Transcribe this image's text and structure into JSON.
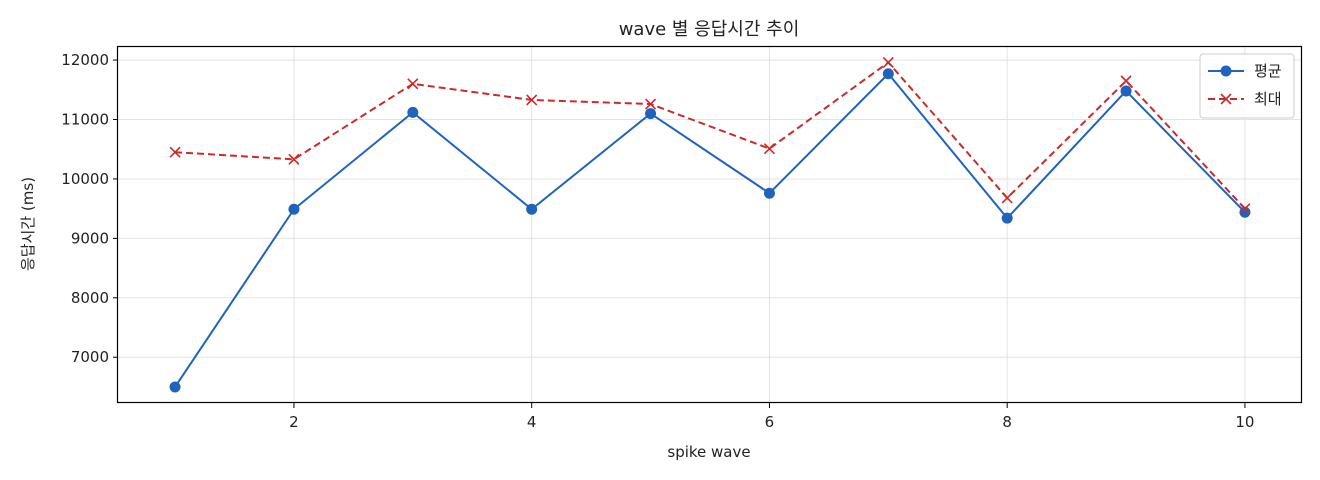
{
  "chart_data": {
    "type": "line",
    "title": "wave 별 응답시간 추이",
    "xlabel": "spike wave",
    "ylabel": "응답시간 (ms)",
    "x": [
      1,
      2,
      3,
      4,
      5,
      6,
      7,
      8,
      9,
      10
    ],
    "xlim": [
      0.52,
      10.48
    ],
    "ylim": [
      6230,
      12220
    ],
    "xticks": [
      2,
      4,
      6,
      8,
      10
    ],
    "yticks": [
      7000,
      8000,
      9000,
      10000,
      11000,
      12000
    ],
    "grid": true,
    "legend_position": "top-right",
    "series": [
      {
        "name": "평균",
        "color": "#1f63bd",
        "line_style": "solid",
        "marker": "circle",
        "values": [
          6500,
          9490,
          11120,
          9490,
          11100,
          9760,
          11770,
          9340,
          11480,
          9440
        ]
      },
      {
        "name": "최대",
        "color": "#cc2a2a",
        "line_style": "dashed",
        "marker": "x",
        "values": [
          10450,
          10330,
          11600,
          11330,
          11260,
          10510,
          11960,
          9680,
          11650,
          9500
        ]
      }
    ]
  }
}
